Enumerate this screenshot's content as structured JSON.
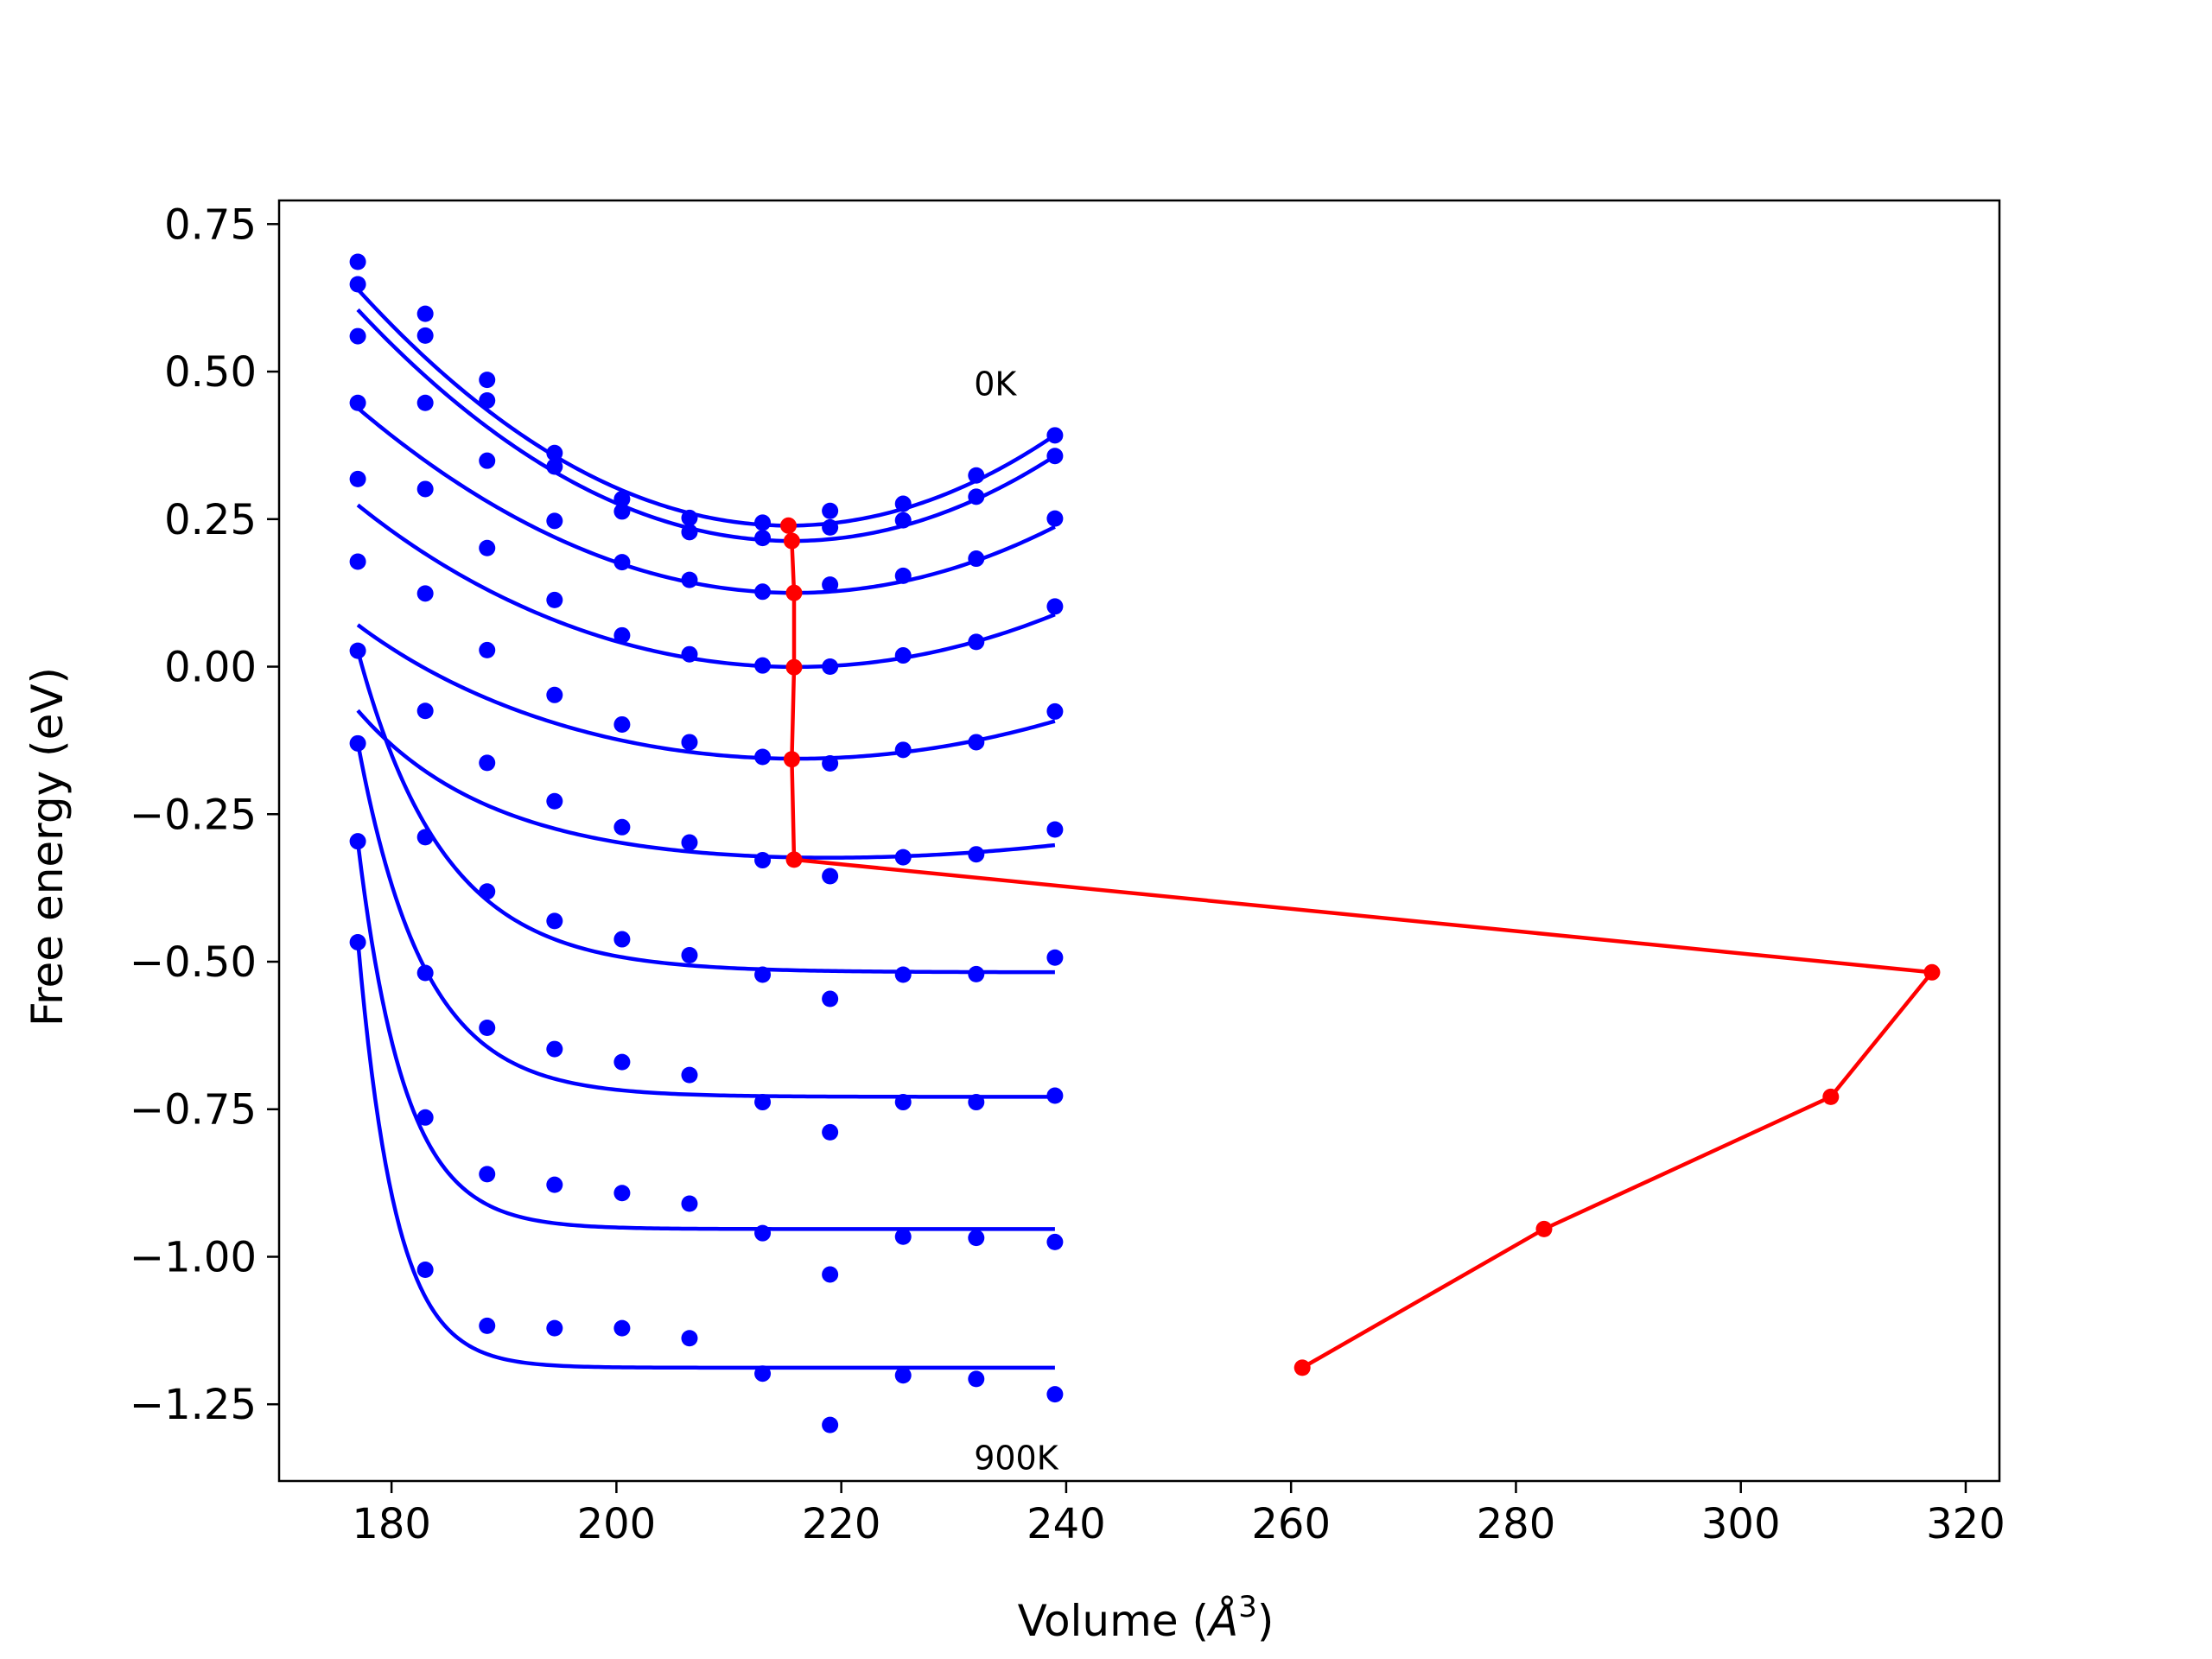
{
  "chart_data": {
    "type": "scatter",
    "xlabel": "Volume ($\\AA^3$)",
    "xlabel_main": "Volume (",
    "xlabel_unit": "Å",
    "xlabel_sup": "3",
    "xlabel_close": ")",
    "ylabel": "Free energy (eV)",
    "xlim": [
      170,
      323
    ],
    "ylim": [
      -1.38,
      0.79
    ],
    "xticks": [
      180,
      200,
      220,
      240,
      260,
      280,
      300,
      320
    ],
    "xtick_labels": [
      "180",
      "200",
      "220",
      "240",
      "260",
      "280",
      "300",
      "320"
    ],
    "yticks": [
      0.75,
      0.5,
      0.25,
      0.0,
      -0.25,
      -0.5,
      -0.75,
      -1.0,
      -1.25
    ],
    "ytick_labels": [
      "0.75",
      "0.50",
      "0.25",
      "0.00",
      "−0.25",
      "−0.50",
      "−0.75",
      "−1.00",
      "−1.25"
    ],
    "grid": false,
    "annotations": [
      {
        "text": "0K",
        "x": 231.8,
        "y": 0.46
      },
      {
        "text": "900K",
        "x": 231.8,
        "y": -1.36
      }
    ],
    "colors": {
      "points": "#0000ff",
      "fits": "#0000ff",
      "minima": "#ff0000"
    },
    "x": [
      177,
      183,
      188.5,
      194.5,
      200.5,
      206.5,
      213,
      219,
      225.5,
      232,
      239
    ],
    "series": [
      {
        "points": [
          0.686,
          0.598,
          0.486,
          0.362,
          0.284,
          0.252,
          0.244,
          0.264,
          0.276,
          0.324,
          0.392
        ],
        "fit": {
          "E0": 0.239,
          "B": 0.000273,
          "Vm": 215.3,
          "A": 0,
          "k": 0.1
        }
      },
      {
        "points": [
          0.648,
          0.561,
          0.451,
          0.339,
          0.263,
          0.228,
          0.218,
          0.236,
          0.248,
          0.288,
          0.357
        ],
        "fit": {
          "E0": 0.213,
          "B": 0.000263,
          "Vm": 215.6,
          "A": 0,
          "k": 0.1
        }
      },
      {
        "points": [
          0.56,
          0.447,
          0.349,
          0.247,
          0.177,
          0.147,
          0.127,
          0.139,
          0.154,
          0.183,
          0.251
        ],
        "fit": {
          "E0": 0.125,
          "B": 0.000208,
          "Vm": 215.8,
          "A": 0,
          "k": 0.1
        }
      },
      {
        "points": [
          0.447,
          0.301,
          0.201,
          0.113,
          0.053,
          0.021,
          0.002,
          0.0,
          0.019,
          0.042,
          0.102
        ],
        "fit": {
          "E0": -0.001,
          "B": 0.000166,
          "Vm": 215.8,
          "A": 0.025,
          "k": 0.1
        }
      },
      {
        "points": [
          0.318,
          0.124,
          0.028,
          -0.048,
          -0.098,
          -0.128,
          -0.153,
          -0.164,
          -0.141,
          -0.128,
          -0.076
        ],
        "fit": {
          "E0": -0.157,
          "B": 0.000118,
          "Vm": 215.6,
          "A": 0.052,
          "k": 0.1
        }
      },
      {
        "points": [
          0.178,
          -0.075,
          -0.163,
          -0.228,
          -0.272,
          -0.298,
          -0.328,
          -0.355,
          -0.323,
          -0.318,
          -0.276
        ],
        "fit": {
          "E0": -0.327,
          "B": 4.5e-05,
          "Vm": 215.8,
          "A": 0.185,
          "k": 0.1
        }
      },
      {
        "points": [
          0.027,
          -0.289,
          -0.381,
          -0.431,
          -0.462,
          -0.489,
          -0.522,
          -0.563,
          -0.522,
          -0.521,
          -0.493
        ],
        "fit": {
          "E0": -0.518,
          "B": 0,
          "Vm": 317,
          "A": 0.545,
          "k": 0.13
        }
      },
      {
        "points": [
          -0.13,
          -0.519,
          -0.612,
          -0.648,
          -0.67,
          -0.692,
          -0.738,
          -0.789,
          -0.738,
          -0.738,
          -0.727
        ],
        "fit": {
          "E0": -0.729,
          "B": 0,
          "Vm": 308,
          "A": 0.6,
          "k": 0.17
        }
      },
      {
        "points": [
          -0.296,
          -0.764,
          -0.86,
          -0.878,
          -0.892,
          -0.91,
          -0.96,
          -1.03,
          -0.966,
          -0.968,
          -0.975
        ],
        "fit": {
          "E0": -0.953,
          "B": 0,
          "Vm": 282.5,
          "A": 0.656,
          "k": 0.24
        }
      },
      {
        "points": [
          -0.467,
          -1.022,
          -1.117,
          -1.121,
          -1.121,
          -1.138,
          -1.198,
          -1.285,
          -1.201,
          -1.207,
          -1.233
        ],
        "fit": {
          "E0": -1.188,
          "B": 0,
          "Vm": 261,
          "A": 0.725,
          "k": 0.3
        }
      }
    ],
    "fit_range": [
      177,
      239
    ],
    "minima": {
      "x": [
        215.3,
        215.6,
        215.8,
        215.8,
        215.6,
        215.8,
        317,
        308,
        282.5,
        261
      ],
      "y": [
        0.239,
        0.213,
        0.125,
        -0.001,
        -0.157,
        -0.327,
        -0.518,
        -0.729,
        -0.953,
        -1.188
      ]
    }
  }
}
